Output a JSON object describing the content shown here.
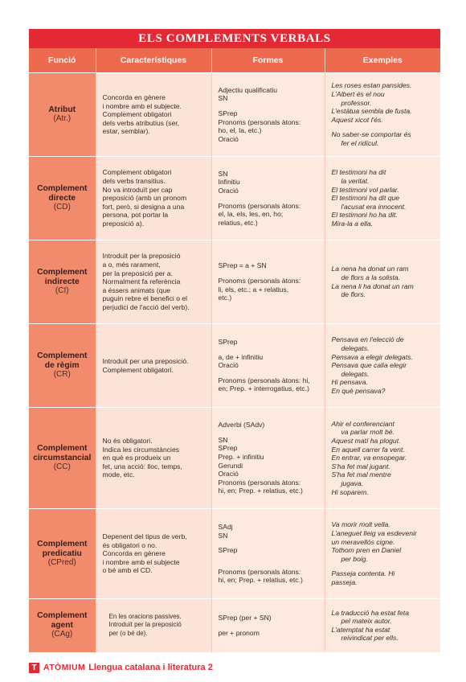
{
  "title": "ELS COMPLEMENTS VERBALS",
  "headers": [
    "Funció",
    "Característiques",
    "Formes",
    "Exemples"
  ],
  "rows": [
    {
      "name": "Atribut",
      "abbr": "(Atr.)",
      "characteristics": [
        "Concorda en gènere",
        "i nombre amb el subjecte.",
        "Complement obligatori",
        "dels verbs atributius (ser,",
        "estar, semblar)."
      ],
      "forms": [
        "Adjectiu qualificatiu",
        "SN",
        "",
        "SPrep",
        "Pronoms (personals àtons:",
        "ho, el, la, etc.)",
        "Oració"
      ],
      "examples": [
        "Les roses estan pansides.",
        "L'Albert és el nou",
        "professor.",
        "L'estàtua sembla de fusta.",
        "Aquest xicot l'és.",
        "",
        "No saber-se comportar és",
        "fer el ridícul."
      ]
    },
    {
      "name": "Complement directe",
      "abbr": "(CD)",
      "characteristics": [
        "Complement obligatori",
        "dels verbs transitius.",
        "No va introduït per cap",
        "preposició (amb un pronom",
        "fort, però, si designa a una",
        "persona, pot portar la",
        "preposició a)."
      ],
      "forms": [
        "SN",
        "Infinitiu",
        "Oració",
        "",
        "Pronoms (personals àtons:",
        "el, la, els, les, en, ho;",
        "relatius, etc.)"
      ],
      "examples": [
        "El testimoni ha dit",
        "la veritat.",
        "El testimoni vol parlar.",
        "El testimoni ha dit que",
        "l'acusat era innocent.",
        "El testimoni ho ha dit.",
        "Mira-la a ella."
      ]
    },
    {
      "name": "Complement indirecte",
      "abbr": "(CI)",
      "characteristics": [
        "Introduït per la preposició",
        "a o, més rarament,",
        "per la preposició per a.",
        "Normalment fa referència",
        "a éssers animats (que",
        "puguin rebre el benefici o el",
        "perjudici de l'acció del verb)."
      ],
      "forms": [
        "SPrep = a + SN",
        "",
        "Pronoms (personals àtons:",
        "li, els, etc.; a + relatius,",
        "etc.)"
      ],
      "examples": [
        "La nena ha donat un ram",
        "de flors a la solista.",
        "La nena li ha donat un ram",
        "de flors."
      ]
    },
    {
      "name": "Complement de règim",
      "abbr": "(CR)",
      "characteristics": [
        "Introduït per una preposició.",
        "Complement obligatori."
      ],
      "forms": [
        "SPrep",
        "",
        "a, de + infinitiu",
        "Oració",
        "",
        "Pronoms (personals àtons: hi,",
        "en; Prep. + interrogatius, etc.)"
      ],
      "examples": [
        "Pensava en l'elecció de",
        "delegats.",
        "Pensava a elegir delegats.",
        "Pensava que calia elegir",
        "delegats.",
        "Hi pensava.",
        "En què pensava?"
      ]
    },
    {
      "name": "Complement circumstancial",
      "abbr": "(CC)",
      "characteristics": [
        "No és obligatori.",
        "Indica les circumstàncies",
        "en què es produeix un",
        "fet, una acció: lloc, temps,",
        "mode, etc."
      ],
      "forms": [
        "Adverbi (SAdv)",
        "",
        "SN",
        "SPrep",
        "Prep. + infinitiu",
        "Gerundi",
        "Oració",
        "Pronoms (personals àtons:",
        "hi, en; Prep. + relatius, etc.)"
      ],
      "examples": [
        "Ahir el conferenciant",
        "va parlar molt bé.",
        "Aquest matí ha plogut.",
        "En aquell carrer fa vent.",
        "En entrar, va ensopegar.",
        "S'ha fet mal jugant.",
        "S'ha fet mal mentre",
        "jugava.",
        "Hi soparem."
      ]
    },
    {
      "name": "Complement predicatiu",
      "abbr": "(CPred)",
      "characteristics": [
        "Depenent del tipus de verb,",
        "és obligatori o no.",
        "Concorda en gènere",
        "i nombre amb el subjecte",
        "o bé amb el CD."
      ],
      "forms": [
        "SAdj",
        "SN",
        "",
        "SPrep",
        "",
        "",
        "Pronoms (personals àtons:",
        "hi, en; Prep. + relatius, etc.)"
      ],
      "examples": [
        "Va morir molt vella.",
        "L'aneguet lleig va esdevenir",
        "un meravellós cigne.",
        "Tothom pren en Daniel",
        "per boig.",
        "",
        "Passeja contenta. Hi",
        "passeja."
      ]
    },
    {
      "name": "Complement agent",
      "abbr": "(CAg)",
      "characteristics": [
        "En les oracions passives.",
        "Introduït per la preposició",
        "per (o bé de)."
      ],
      "forms": [
        "SPrep (per + SN)",
        "",
        "per + pronom"
      ],
      "examples": [
        "La traducció ha estat feta",
        "pel mateix autor.",
        "L'atemptat ha estat",
        "reivindicat per ells."
      ]
    }
  ],
  "footer": {
    "logo_letter": "T",
    "brand": "ATÒMIUM",
    "subject": "Llengua catalana i literatura 2"
  },
  "colors": {
    "title_bg": "#e32934",
    "header_bg": "#ee6a4e",
    "function_bg": "#f28a6c",
    "cell_bg": "#fde9e0"
  }
}
